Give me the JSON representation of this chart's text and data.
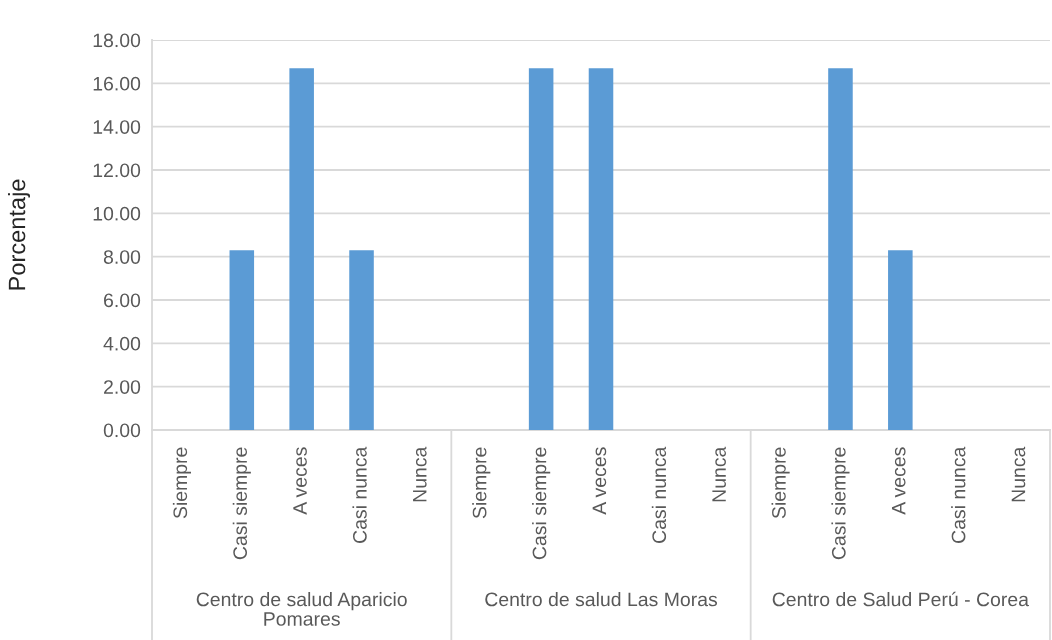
{
  "chart_data": {
    "type": "bar",
    "ylabel": "Porcentaje",
    "categories": [
      "Siempre",
      "Casi siempre",
      "A veces",
      "Casi nunca",
      "Nunca",
      "Siempre",
      "Casi siempre",
      "A veces",
      "Casi nunca",
      "Nunca",
      "Siempre",
      "Casi siempre",
      "A veces",
      "Casi nunca",
      "Nunca"
    ],
    "values": [
      0,
      8.3,
      16.7,
      8.3,
      0,
      0,
      16.7,
      16.7,
      0,
      0,
      0,
      16.7,
      8.3,
      0,
      0
    ],
    "color": "#5b9bd5",
    "ylim": [
      0,
      18
    ],
    "yticks": [
      {
        "value": 0,
        "label": "0.00"
      },
      {
        "value": 2,
        "label": "2.00"
      },
      {
        "value": 4,
        "label": "4.00"
      },
      {
        "value": 6,
        "label": "6.00"
      },
      {
        "value": 8,
        "label": "8.00"
      },
      {
        "value": 10,
        "label": "10.00"
      },
      {
        "value": 12,
        "label": "12.00"
      },
      {
        "value": 14,
        "label": "14.00"
      },
      {
        "value": 16,
        "label": "16.00"
      },
      {
        "value": 18,
        "label": "18.00"
      }
    ],
    "grid": "y",
    "annotations": [
      "Centro de salud Aparicio Pomares",
      "Centro de salud Las Moras",
      "Centro de Salud Perú - Corea"
    ]
  }
}
